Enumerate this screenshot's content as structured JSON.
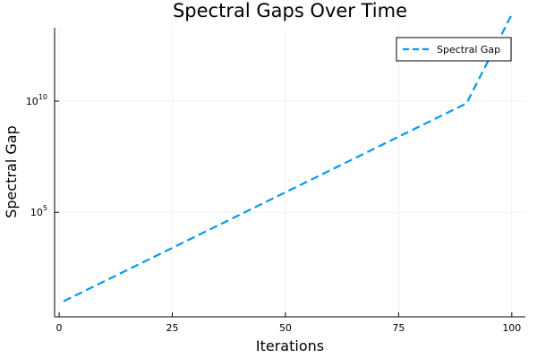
{
  "chart_data": {
    "type": "line",
    "title": "Spectral Gaps Over Time",
    "xlabel": "Iterations",
    "ylabel": "Spectral Gap",
    "xlim": [
      -1,
      103
    ],
    "ylim_log10": [
      0.3,
      13.3
    ],
    "y_scale": "log10",
    "grid": true,
    "legend_position": "top-right",
    "x_ticks": [
      0,
      25,
      50,
      75,
      100
    ],
    "y_ticks": [
      {
        "value": 100000,
        "base": "10",
        "exponent": "5"
      },
      {
        "value": 10000000000,
        "base": "10",
        "exponent": "10"
      }
    ],
    "series": [
      {
        "name": "Spectral Gap",
        "color": "#009AFA",
        "line_style": "dashed",
        "x": [
          1,
          10,
          20,
          30,
          40,
          50,
          60,
          70,
          80,
          90,
          100
        ],
        "y": [
          10,
          79.4,
          794,
          7943,
          79430,
          794300,
          7943000,
          79430000,
          794300000,
          7943000000,
          79430000000000
        ]
      }
    ]
  }
}
